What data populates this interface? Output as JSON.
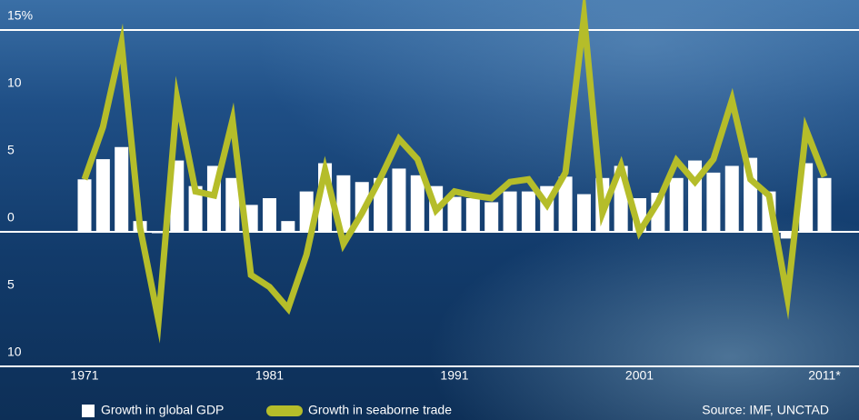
{
  "chart_data": {
    "type": "bar_line",
    "source": "Source: IMF, UNCTAD",
    "categories": [
      "1971",
      null,
      null,
      null,
      null,
      null,
      null,
      null,
      null,
      null,
      "1981",
      null,
      null,
      null,
      null,
      null,
      null,
      null,
      null,
      null,
      "1991",
      null,
      null,
      null,
      null,
      null,
      null,
      null,
      null,
      null,
      "2001",
      null,
      null,
      null,
      null,
      null,
      null,
      null,
      null,
      null,
      "2011*"
    ],
    "series": [
      {
        "name": "Growth in global GDP",
        "type": "bar",
        "color": "#ffffff",
        "values": [
          3.9,
          5.4,
          6.3,
          0.8,
          -0.1,
          5.3,
          3.4,
          4.9,
          4.0,
          2.0,
          2.5,
          0.8,
          3.0,
          5.1,
          4.2,
          3.7,
          4.0,
          4.7,
          4.2,
          3.4,
          2.6,
          2.5,
          2.2,
          3.0,
          3.0,
          3.4,
          4.1,
          2.8,
          4.0,
          4.9,
          2.5,
          2.9,
          4.0,
          5.3,
          4.4,
          4.9,
          5.5,
          3.0,
          -0.5,
          5.1,
          4.0
        ]
      },
      {
        "name": "Growth in seaborne trade",
        "type": "line",
        "color": "#b5bd2a",
        "values": [
          3.9,
          7.8,
          14.0,
          0.3,
          -6.6,
          9.9,
          3.0,
          2.7,
          8.3,
          -3.2,
          -4.1,
          -5.7,
          -1.7,
          4.6,
          -0.9,
          1.4,
          4.0,
          6.9,
          5.4,
          1.6,
          3.0,
          2.7,
          2.5,
          3.7,
          3.9,
          2.0,
          4.4,
          16.0,
          1.4,
          4.9,
          0.0,
          2.2,
          5.3,
          3.7,
          5.4,
          9.8,
          3.9,
          2.7,
          -4.9,
          7.6,
          4.1
        ]
      }
    ],
    "ylim": [
      -10,
      15
    ],
    "yticks": [
      {
        "value": 15,
        "label": "15%"
      },
      10,
      5,
      0,
      {
        "value": -5,
        "label": "5"
      },
      {
        "value": -10,
        "label": "10"
      }
    ]
  }
}
